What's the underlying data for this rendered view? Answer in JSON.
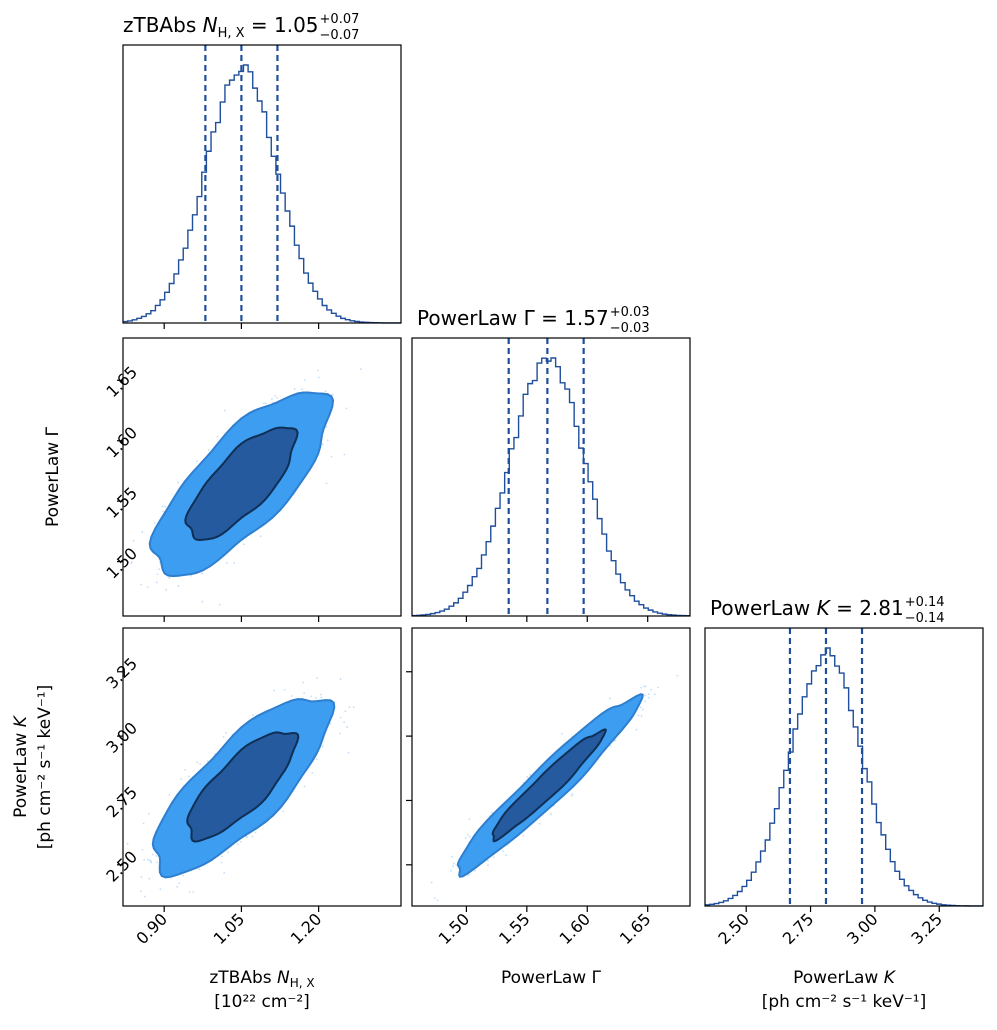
{
  "colors": {
    "line": "#1f4e9c",
    "fill_outer": "#3d9df0",
    "fill_inner": "#255a9e",
    "scatter": "#a8d0f7",
    "axis": "#000000"
  },
  "chart_data": {
    "type": "corner",
    "parameters": [
      {
        "name": "zTBAbs N_H,X",
        "median": 1.05,
        "plus": 0.07,
        "minus": 0.07,
        "range": [
          0.82,
          1.36
        ],
        "ticks": [
          0.9,
          1.05,
          1.2
        ],
        "tick_labels": [
          "0.90",
          "1.05",
          "1.20"
        ]
      },
      {
        "name": "PowerLaw Γ",
        "median": 1.57,
        "plus": 0.03,
        "minus": 0.03,
        "range": [
          1.455,
          1.685
        ],
        "ticks": [
          1.5,
          1.55,
          1.6,
          1.65
        ],
        "tick_labels": [
          "1.50",
          "1.55",
          "1.60",
          "1.65"
        ]
      },
      {
        "name": "PowerLaw K",
        "median": 2.81,
        "plus": 0.14,
        "minus": 0.14,
        "range": [
          2.34,
          3.42
        ],
        "ticks": [
          2.5,
          2.75,
          3.0,
          3.25
        ],
        "tick_labels": [
          "2.50",
          "2.75",
          "3.00",
          "3.25"
        ]
      }
    ],
    "titles": [
      {
        "prefix": "zTBAbs ",
        "sym": "N",
        "sub": "H, X",
        "value": " = 1.05",
        "sup": "+0.07",
        "low": "−0.07"
      },
      {
        "prefix": "PowerLaw Γ",
        "sym": "",
        "sub": "",
        "value": " = 1.57",
        "sup": "+0.03",
        "low": "−0.03"
      },
      {
        "prefix": "PowerLaw ",
        "sym": "K",
        "sub": "",
        "value": " = 2.81",
        "sup": "+0.14",
        "low": "−0.14"
      }
    ],
    "xlabels": [
      {
        "l1a": "zTBAbs ",
        "l1sym": "N",
        "l1sub": "H, X",
        "l2": "[10²² cm⁻²]"
      },
      {
        "l1a": "PowerLaw Γ",
        "l1sym": "",
        "l1sub": "",
        "l2": ""
      },
      {
        "l1a": "PowerLaw ",
        "l1sym": "K",
        "l1sub": "",
        "l2": "[ph cm⁻² s⁻¹ keV⁻¹]"
      }
    ],
    "ylabels": [
      {
        "l1a": "PowerLaw Γ",
        "l1sym": "",
        "l2": ""
      },
      {
        "l1a": "PowerLaw ",
        "l1sym": "K",
        "l2": "[ph cm⁻² s⁻¹ keV⁻¹]"
      }
    ],
    "quantile_lines": [
      [
        0.98,
        1.05,
        1.12
      ],
      [
        1.535,
        1.567,
        1.597
      ],
      [
        2.67,
        2.81,
        2.95
      ]
    ],
    "histograms": [
      {
        "sigma": 0.07,
        "median": 1.05
      },
      {
        "sigma": 0.031,
        "median": 1.567
      },
      {
        "sigma": 0.14,
        "median": 2.81
      }
    ],
    "pairs": [
      {
        "row": 1,
        "col": 0,
        "center": [
          1.05,
          1.565
        ],
        "sx": 0.07,
        "sy": 0.031,
        "rho": 0.75
      },
      {
        "row": 2,
        "col": 0,
        "center": [
          1.05,
          2.81
        ],
        "sx": 0.07,
        "sy": 0.14,
        "rho": 0.78
      },
      {
        "row": 2,
        "col": 1,
        "center": [
          1.567,
          2.81
        ],
        "sx": 0.031,
        "sy": 0.14,
        "rho": 0.96
      }
    ],
    "contour_levels": [
      "1σ",
      "2σ"
    ]
  }
}
